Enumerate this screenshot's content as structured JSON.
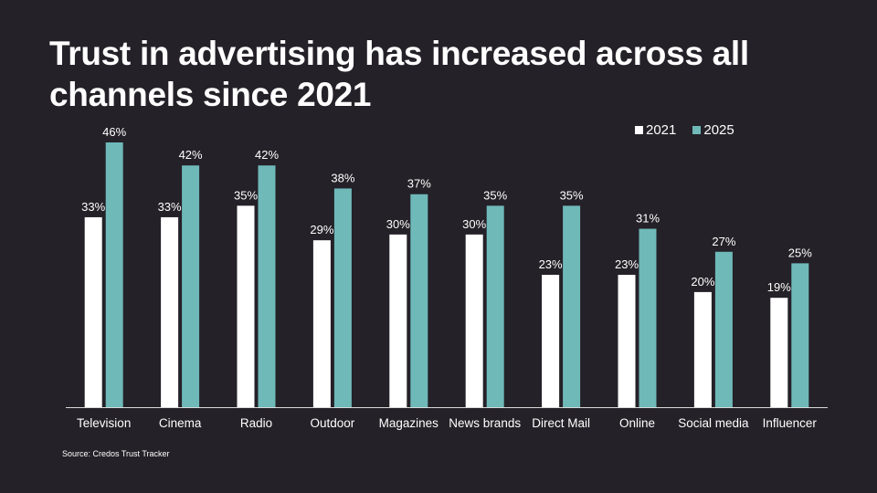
{
  "chart_data": {
    "type": "bar",
    "title": "Trust in advertising has increased across all channels since 2021",
    "xlabel": "",
    "ylabel": "",
    "ylim": [
      0,
      46
    ],
    "grid": false,
    "legend_position": "top-right",
    "categories": [
      "Television",
      "Cinema",
      "Radio",
      "Outdoor",
      "Magazines",
      "News brands",
      "Direct Mail",
      "Online",
      "Social media",
      "Influencer"
    ],
    "series": [
      {
        "name": "2021",
        "color": "#ffffff",
        "values": [
          33,
          33,
          35,
          29,
          30,
          30,
          23,
          23,
          20,
          19
        ]
      },
      {
        "name": "2025",
        "color": "#6fb9b9",
        "values": [
          46,
          42,
          42,
          38,
          37,
          35,
          35,
          31,
          27,
          25
        ]
      }
    ],
    "data_label_suffix": "%",
    "source": "Source: Credos Trust Tracker"
  }
}
